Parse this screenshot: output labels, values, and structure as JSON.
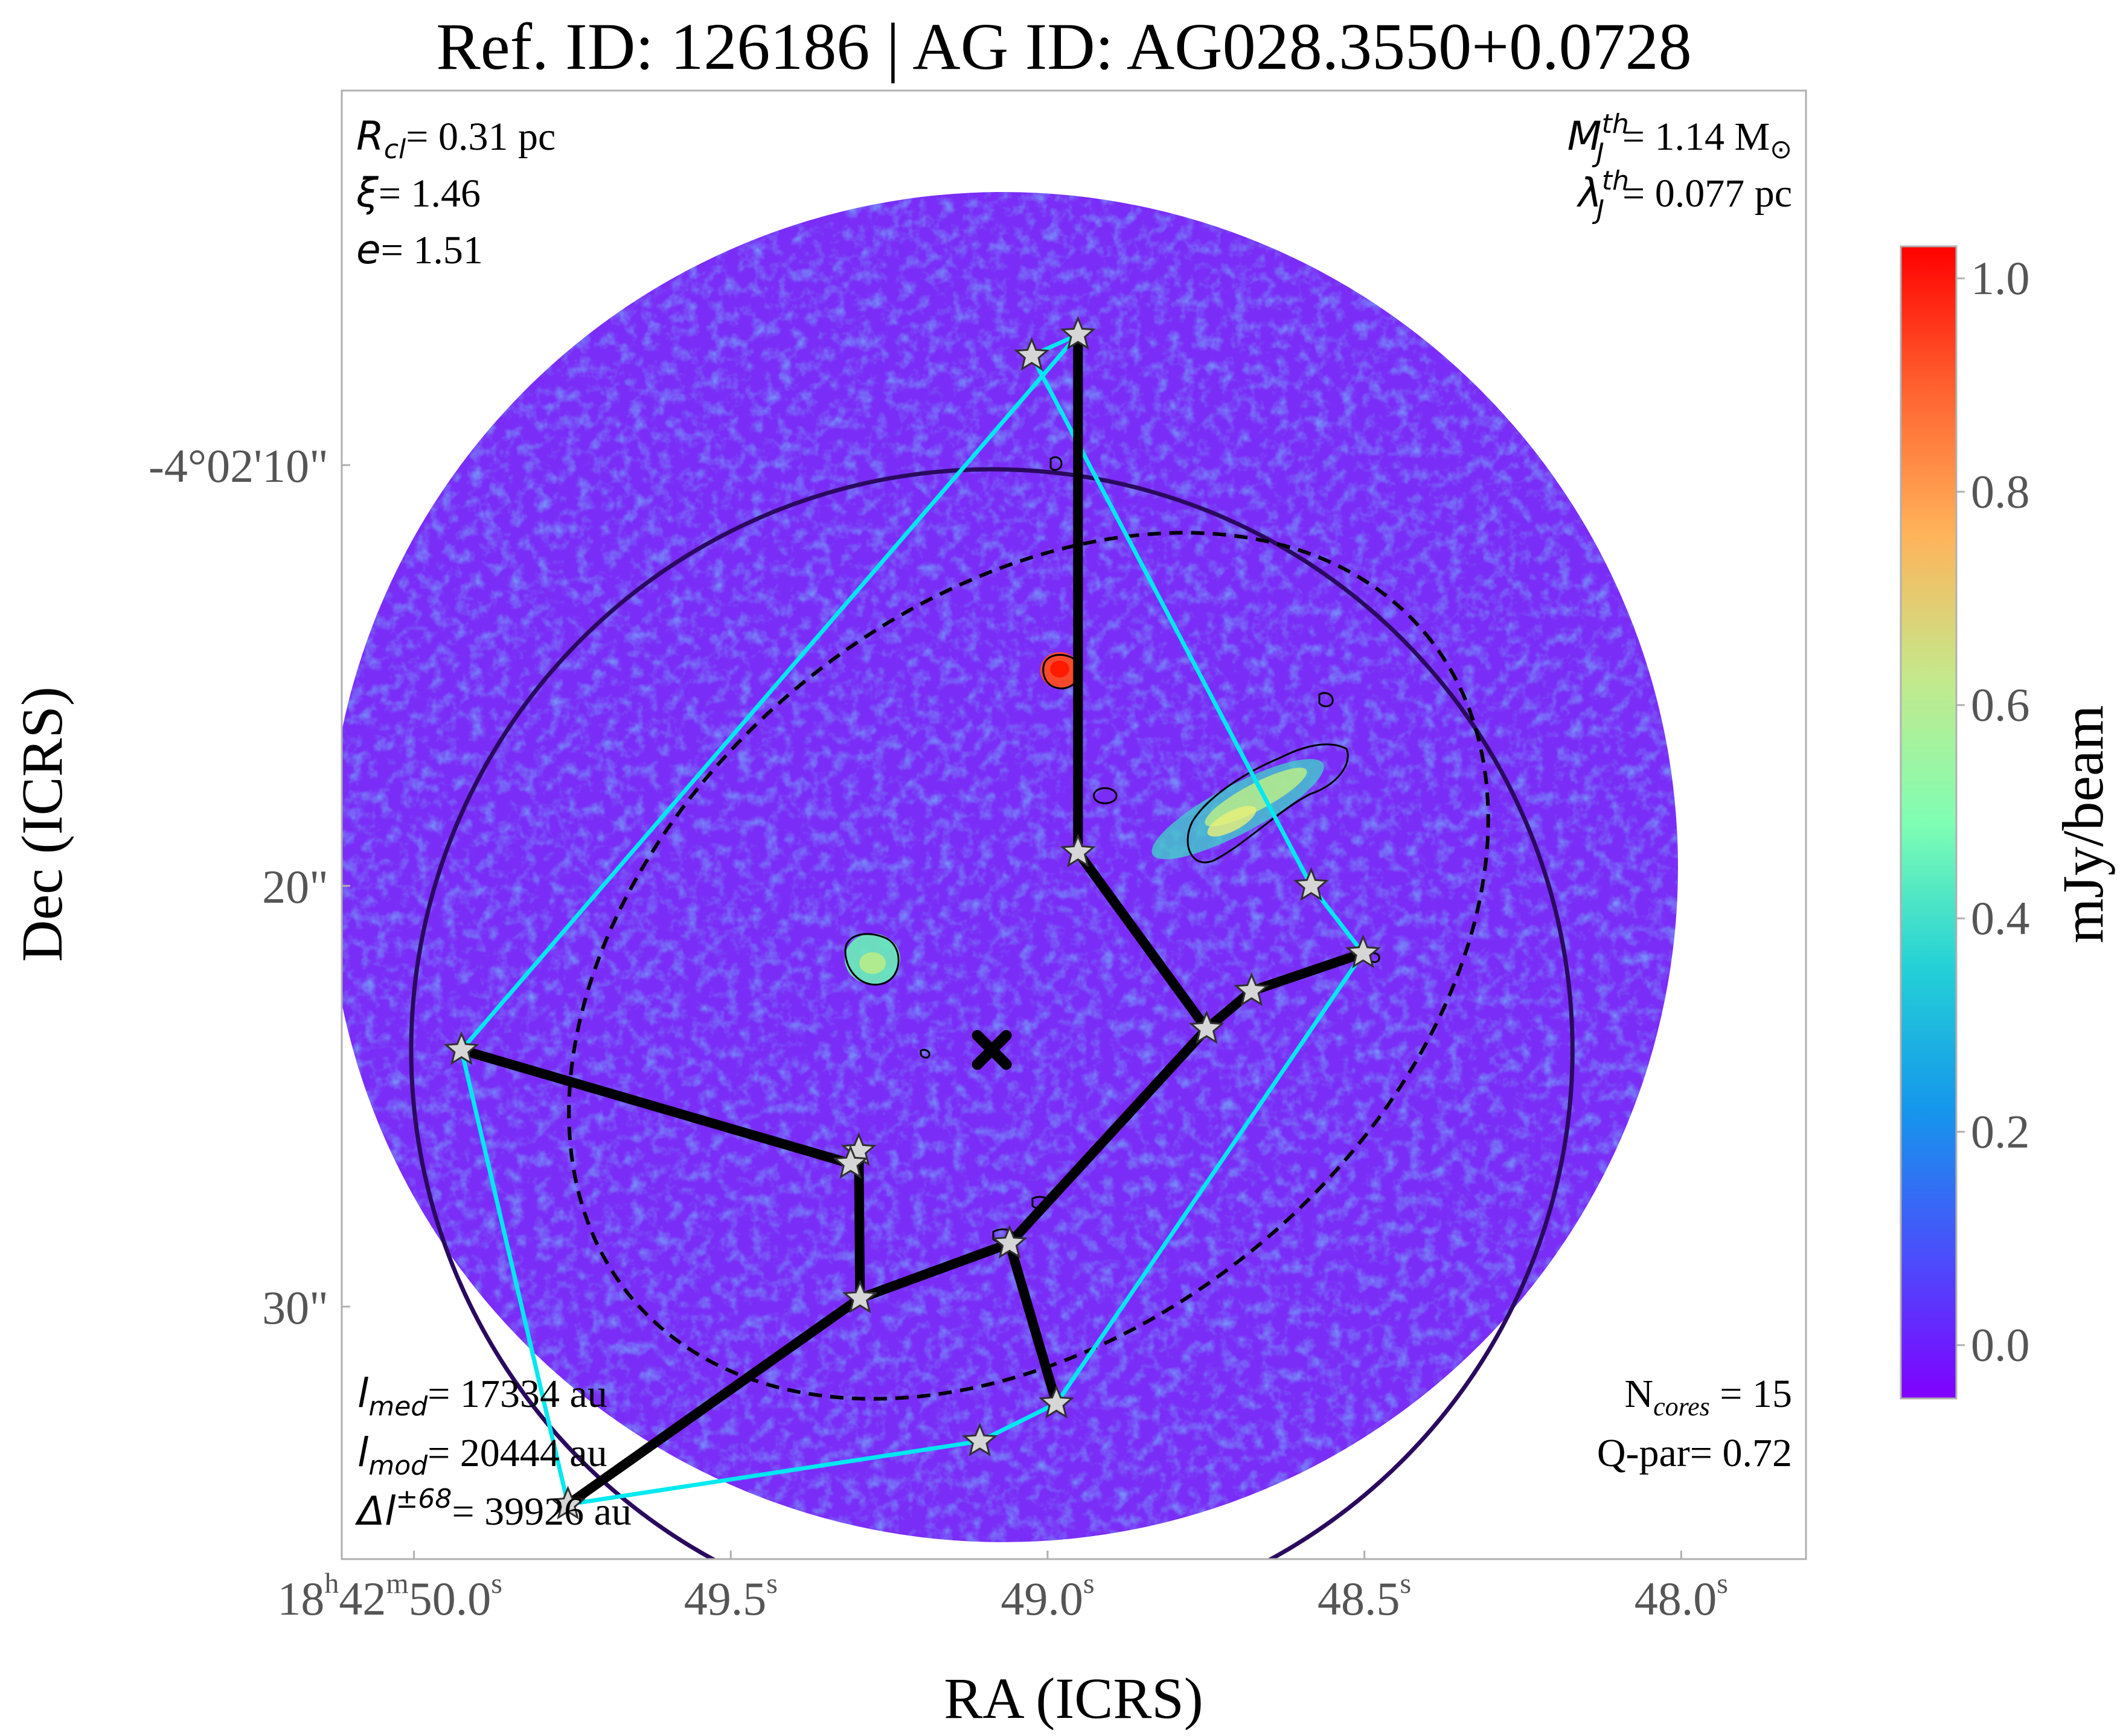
{
  "chart_data": {
    "type": "scatter",
    "title": "Ref. ID: 126186 | AG ID: AG028.3550+0.0728",
    "xlabel": "RA (ICRS)",
    "ylabel": "Dec (ICRS)",
    "colorbar": {
      "label": "mJy/beam",
      "range": [
        -0.05,
        1.03
      ],
      "ticks": [
        "0.0",
        "0.2",
        "0.4",
        "0.6",
        "0.8",
        "1.0"
      ],
      "tick_values": [
        0.0,
        0.2,
        0.4,
        0.6,
        0.8,
        1.0
      ],
      "colormap": "rainbow"
    },
    "axes": {
      "x_ticks": [
        {
          "h": "18",
          "m": "42",
          "s": "50.0",
          "label": "18h42m50.0s",
          "pos": 50.0
        },
        {
          "s": "49.5",
          "label": "49.5s",
          "pos": 49.5
        },
        {
          "s": "49.0",
          "label": "49.0s",
          "pos": 49.0
        },
        {
          "s": "48.5",
          "label": "48.5s",
          "pos": 48.5
        },
        {
          "s": "48.0",
          "label": "48.0s",
          "pos": 48.0
        }
      ],
      "y_ticks": [
        {
          "label": "-4°02'10\"",
          "pos": 10
        },
        {
          "label": "20\"",
          "pos": 20
        },
        {
          "label": "30\"",
          "pos": 30
        }
      ],
      "ra_range": [
        50.114,
        47.803
      ],
      "dec_range": [
        1.1,
        36.0
      ]
    },
    "annotations": {
      "top_left": [
        {
          "sym": "R",
          "sub": "cl",
          "text": "= 0.31 pc"
        },
        {
          "sym": "ξ",
          "text": "= 1.46"
        },
        {
          "sym": "e",
          "text": "= 1.51"
        }
      ],
      "top_right": [
        {
          "sym": "M",
          "sub": "J",
          "sup": "th",
          "text": "= 1.14 M",
          "sun": "⊙"
        },
        {
          "sym": "λ",
          "sub": "J",
          "sup": "th",
          "text": "= 0.077 pc"
        }
      ],
      "bottom_left": [
        {
          "sym": "l",
          "sub": "med",
          "text": "= 17334 au"
        },
        {
          "sym": "l",
          "sub": "mod",
          "text": "= 20444 au"
        },
        {
          "sym": "Δl",
          "sup": "±68",
          "text": "= 39926 au"
        }
      ],
      "bottom_right": [
        {
          "sym": "N",
          "sub": "cores",
          "text": " = 15",
          "upright": true
        },
        {
          "text": "Q-par= 0.72"
        }
      ]
    },
    "cores": [
      {
        "ra": 48.952,
        "dec": 6.9
      },
      {
        "ra": 49.025,
        "dec": 7.4
      },
      {
        "ra": 48.952,
        "dec": 19.2
      },
      {
        "ra": 48.584,
        "dec": 20.0
      },
      {
        "ra": 48.502,
        "dec": 21.6
      },
      {
        "ra": 48.678,
        "dec": 22.5
      },
      {
        "ra": 48.749,
        "dec": 23.4
      },
      {
        "ra": 49.925,
        "dec": 23.9
      },
      {
        "ra": 49.298,
        "dec": 26.3
      },
      {
        "ra": 49.311,
        "dec": 26.6
      },
      {
        "ra": 49.06,
        "dec": 28.5
      },
      {
        "ra": 49.296,
        "dec": 29.8
      },
      {
        "ra": 48.986,
        "dec": 32.3
      },
      {
        "ra": 49.107,
        "dec": 33.2
      },
      {
        "ra": 49.757,
        "dec": 34.7
      }
    ],
    "mst_edges": [
      [
        0,
        2
      ],
      [
        2,
        6
      ],
      [
        6,
        5
      ],
      [
        5,
        4
      ],
      [
        6,
        10
      ],
      [
        10,
        12
      ],
      [
        10,
        11
      ],
      [
        11,
        8
      ],
      [
        8,
        9
      ],
      [
        9,
        7
      ],
      [
        11,
        14
      ]
    ],
    "hull": [
      0,
      1,
      3,
      4,
      12,
      13,
      14,
      7,
      0
    ],
    "center": {
      "ra": 49.088,
      "dec": 23.9
    },
    "cluster_circle": {
      "ra": 49.088,
      "dec": 23.9,
      "radius_arcsec": 13.8
    },
    "fit_ellipse": {
      "ra": 49.03,
      "dec": 21.9,
      "semi_major_arcsec": 12.3,
      "semi_minor_arcsec": 8.6,
      "pa_deg": 40
    },
    "colors": {
      "mst": "#000000",
      "hull": "#00e8f0",
      "circle": "#2a0a5e",
      "background_field": "#7b2cf5",
      "star": "#d6d6d6"
    }
  }
}
